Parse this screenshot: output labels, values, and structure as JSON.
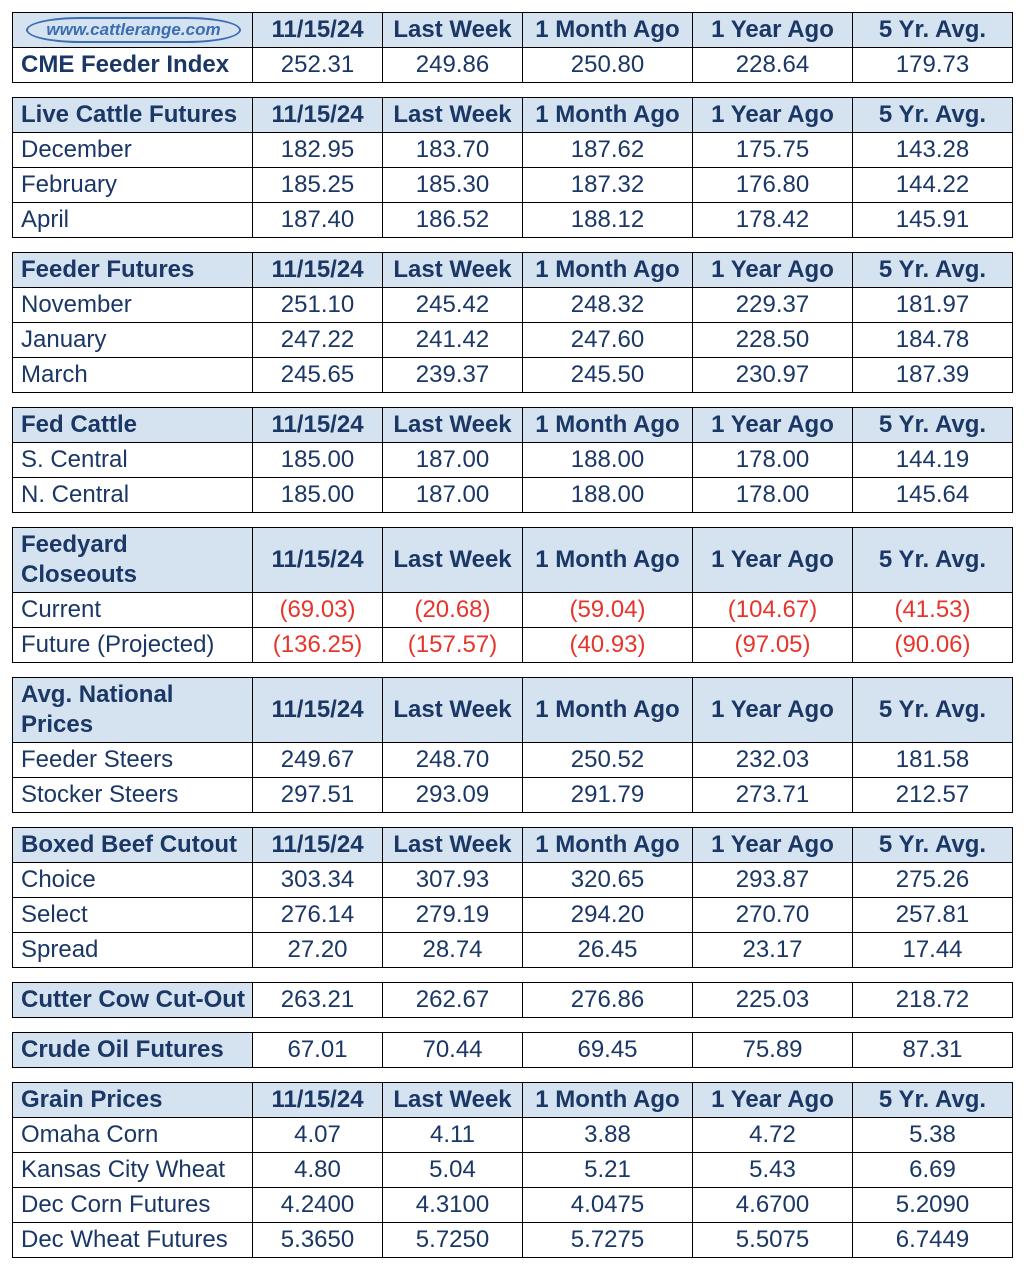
{
  "colors": {
    "header_bg": "#d5e2ef",
    "text": "#1a3766",
    "negative": "#e7352c",
    "border": "#000000",
    "bg": "#ffffff",
    "logo_border": "#3b6db4"
  },
  "column_headers": [
    "11/15/24",
    "Last Week",
    "1 Month Ago",
    "1 Year Ago",
    "5 Yr. Avg."
  ],
  "logo_text": "www.cattlerange.com",
  "sections": [
    {
      "has_logo_header": true,
      "rows": [
        {
          "label": "CME Feeder Index",
          "bold": true,
          "values": [
            "252.31",
            "249.86",
            "250.80",
            "228.64",
            "179.73"
          ]
        }
      ]
    },
    {
      "title": "Live Cattle Futures",
      "rows": [
        {
          "label": "December",
          "values": [
            "182.95",
            "183.70",
            "187.62",
            "175.75",
            "143.28"
          ]
        },
        {
          "label": "February",
          "values": [
            "185.25",
            "185.30",
            "187.32",
            "176.80",
            "144.22"
          ]
        },
        {
          "label": "April",
          "values": [
            "187.40",
            "186.52",
            "188.12",
            "178.42",
            "145.91"
          ]
        }
      ]
    },
    {
      "title": "Feeder Futures",
      "rows": [
        {
          "label": "November",
          "values": [
            "251.10",
            "245.42",
            "248.32",
            "229.37",
            "181.97"
          ]
        },
        {
          "label": "January",
          "values": [
            "247.22",
            "241.42",
            "247.60",
            "228.50",
            "184.78"
          ]
        },
        {
          "label": "March",
          "values": [
            "245.65",
            "239.37",
            "245.50",
            "230.97",
            "187.39"
          ]
        }
      ]
    },
    {
      "title": "Fed Cattle",
      "rows": [
        {
          "label": "S. Central",
          "values": [
            "185.00",
            "187.00",
            "188.00",
            "178.00",
            "144.19"
          ]
        },
        {
          "label": "N. Central",
          "values": [
            "185.00",
            "187.00",
            "188.00",
            "178.00",
            "145.64"
          ]
        }
      ]
    },
    {
      "title": "Feedyard Closeouts",
      "rows": [
        {
          "label": "Current",
          "values": [
            "(69.03)",
            "(20.68)",
            "(59.04)",
            "(104.67)",
            "(41.53)"
          ],
          "negative": true
        },
        {
          "label": "Future (Projected)",
          "values": [
            "(136.25)",
            "(157.57)",
            "(40.93)",
            "(97.05)",
            "(90.06)"
          ],
          "negative": true
        }
      ]
    },
    {
      "title": "Avg. National Prices",
      "rows": [
        {
          "label": "Feeder Steers",
          "values": [
            "249.67",
            "248.70",
            "250.52",
            "232.03",
            "181.58"
          ]
        },
        {
          "label": "Stocker Steers",
          "values": [
            "297.51",
            "293.09",
            "291.79",
            "273.71",
            "212.57"
          ]
        }
      ]
    },
    {
      "title": "Boxed Beef Cutout",
      "rows": [
        {
          "label": "Choice",
          "values": [
            "303.34",
            "307.93",
            "320.65",
            "293.87",
            "275.26"
          ]
        },
        {
          "label": "Select",
          "values": [
            "276.14",
            "279.19",
            "294.20",
            "270.70",
            "257.81"
          ]
        },
        {
          "label": " Spread",
          "values": [
            "27.20",
            "28.74",
            "26.45",
            "23.17",
            "17.44"
          ]
        }
      ]
    },
    {
      "single_row_header": true,
      "title": "Cutter Cow Cut-Out",
      "values": [
        "263.21",
        "262.67",
        "276.86",
        "225.03",
        "218.72"
      ]
    },
    {
      "single_row_header": true,
      "title": "Crude Oil Futures",
      "values": [
        "67.01",
        "70.44",
        "69.45",
        "75.89",
        "87.31"
      ]
    },
    {
      "title": "Grain Prices",
      "rows": [
        {
          "label": "Omaha Corn",
          "values": [
            "4.07",
            "4.11",
            "3.88",
            "4.72",
            "5.38"
          ]
        },
        {
          "label": "Kansas City Wheat",
          "values": [
            "4.80",
            "5.04",
            "5.21",
            "5.43",
            "6.69"
          ]
        },
        {
          "label": "Dec Corn Futures",
          "values": [
            "4.2400",
            "4.3100",
            "4.0475",
            "4.6700",
            "5.2090"
          ]
        },
        {
          "label": "Dec Wheat Futures",
          "values": [
            "5.3650",
            "5.7250",
            "5.7275",
            "5.5075",
            "6.7449"
          ]
        }
      ]
    }
  ]
}
